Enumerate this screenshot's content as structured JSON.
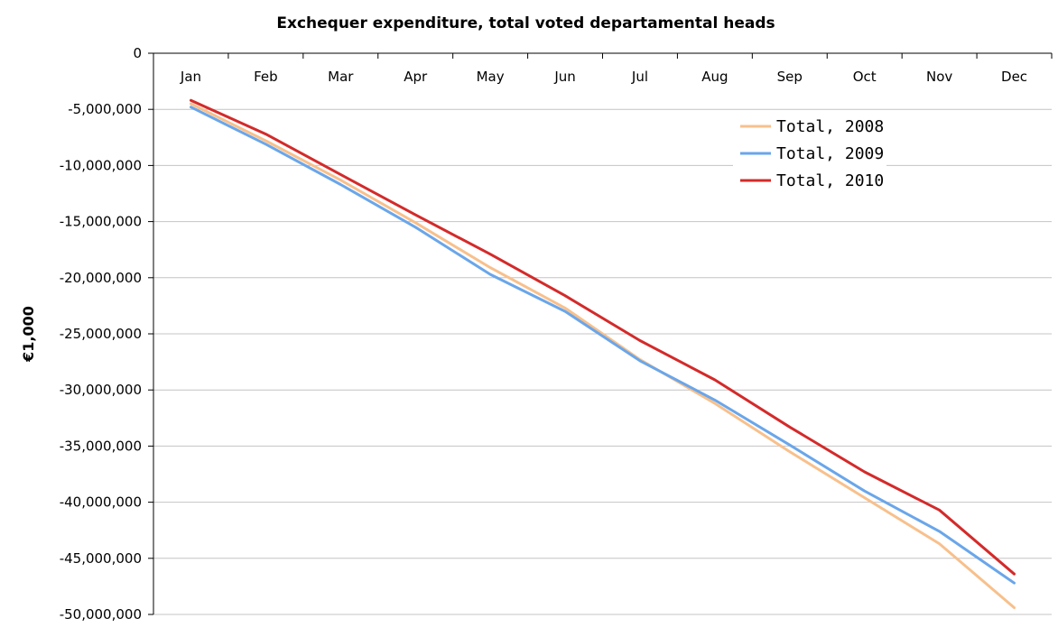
{
  "chart_data": {
    "type": "line",
    "title": "Exchequer expenditure, total voted departamental heads",
    "xlabel": "",
    "ylabel": "€1,000",
    "categories": [
      "Jan",
      "Feb",
      "Mar",
      "Apr",
      "May",
      "Jun",
      "Jul",
      "Aug",
      "Sep",
      "Oct",
      "Nov",
      "Dec"
    ],
    "ylim": [
      -50000000,
      0
    ],
    "yticks": [
      0,
      -5000000,
      -10000000,
      -15000000,
      -20000000,
      -25000000,
      -30000000,
      -35000000,
      -40000000,
      -45000000,
      -50000000
    ],
    "ytick_labels": [
      "0",
      "-5,000,000",
      "-10,000,000",
      "-15,000,000",
      "-20,000,000",
      "-25,000,000",
      "-30,000,000",
      "-35,000,000",
      "-40,000,000",
      "-45,000,000",
      "-50,000,000"
    ],
    "x_axis_position": "top",
    "grid": "horizontal",
    "legend_position": "top-right",
    "series": [
      {
        "name": "Total, 2008",
        "color": "#f8c08c",
        "values": [
          -4500000,
          -7800000,
          -11300000,
          -15100000,
          -19100000,
          -22700000,
          -27300000,
          -31200000,
          -35500000,
          -39600000,
          -43700000,
          -49400000
        ]
      },
      {
        "name": "Total, 2009",
        "color": "#6aa6ea",
        "values": [
          -4800000,
          -8100000,
          -11700000,
          -15500000,
          -19700000,
          -23000000,
          -27400000,
          -30900000,
          -34900000,
          -39000000,
          -42600000,
          -47200000
        ]
      },
      {
        "name": "Total, 2010",
        "color": "#d42a2a",
        "values": [
          -4200000,
          -7200000,
          -10800000,
          -14400000,
          -17900000,
          -21600000,
          -25600000,
          -29100000,
          -33300000,
          -37300000,
          -40700000,
          -46400000
        ]
      }
    ]
  }
}
